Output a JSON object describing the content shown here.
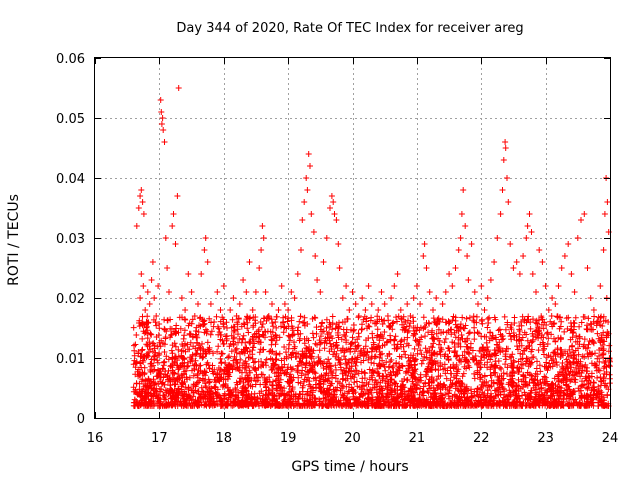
{
  "chart_data": {
    "type": "scatter",
    "title": "Day 344 of 2020, Rate Of TEC Index for receiver areg",
    "xlabel": "GPS time / hours",
    "ylabel": "ROTI / TECUs",
    "xlim": [
      16,
      24
    ],
    "ylim": [
      0,
      0.06
    ],
    "x_ticks": [
      16,
      17,
      18,
      19,
      20,
      21,
      22,
      23,
      24
    ],
    "y_ticks": [
      0,
      0.01,
      0.02,
      0.03,
      0.04,
      0.05,
      0.06
    ],
    "x_tick_labels": [
      "16",
      "17",
      "18",
      "19",
      "20",
      "21",
      "22",
      "23",
      "24"
    ],
    "y_tick_labels": [
      "0",
      "0.01",
      "0.02",
      "0.03",
      "0.04",
      "0.05",
      "0.06"
    ],
    "grid": true,
    "marker": "+",
    "color": "#ff0000",
    "series": [
      {
        "name": "ROTI",
        "points": [
          [
            16.65,
            0.032
          ],
          [
            16.68,
            0.035
          ],
          [
            16.7,
            0.037
          ],
          [
            16.72,
            0.038
          ],
          [
            16.74,
            0.036
          ],
          [
            16.76,
            0.034
          ],
          [
            16.7,
            0.02
          ],
          [
            16.72,
            0.024
          ],
          [
            16.75,
            0.022
          ],
          [
            16.78,
            0.018
          ],
          [
            16.8,
            0.016
          ],
          [
            16.82,
            0.021
          ],
          [
            16.85,
            0.019
          ],
          [
            16.88,
            0.023
          ],
          [
            16.9,
            0.026
          ],
          [
            16.92,
            0.02
          ],
          [
            16.95,
            0.017
          ],
          [
            16.98,
            0.022
          ],
          [
            17.02,
            0.053
          ],
          [
            17.03,
            0.051
          ],
          [
            17.04,
            0.049
          ],
          [
            17.05,
            0.05
          ],
          [
            17.06,
            0.048
          ],
          [
            17.08,
            0.046
          ],
          [
            17.1,
            0.03
          ],
          [
            17.12,
            0.025
          ],
          [
            17.15,
            0.021
          ],
          [
            17.2,
            0.032
          ],
          [
            17.22,
            0.034
          ],
          [
            17.25,
            0.029
          ],
          [
            17.28,
            0.037
          ],
          [
            17.3,
            0.055
          ],
          [
            17.35,
            0.02
          ],
          [
            17.4,
            0.018
          ],
          [
            17.45,
            0.024
          ],
          [
            17.5,
            0.021
          ],
          [
            17.55,
            0.017
          ],
          [
            17.6,
            0.019
          ],
          [
            17.65,
            0.024
          ],
          [
            17.7,
            0.028
          ],
          [
            17.72,
            0.03
          ],
          [
            17.75,
            0.026
          ],
          [
            17.8,
            0.019
          ],
          [
            17.85,
            0.016
          ],
          [
            17.9,
            0.021
          ],
          [
            17.95,
            0.018
          ],
          [
            18.0,
            0.022
          ],
          [
            18.05,
            0.015
          ],
          [
            18.1,
            0.018
          ],
          [
            18.15,
            0.02
          ],
          [
            18.2,
            0.017
          ],
          [
            18.25,
            0.019
          ],
          [
            18.3,
            0.023
          ],
          [
            18.35,
            0.021
          ],
          [
            18.4,
            0.026
          ],
          [
            18.45,
            0.018
          ],
          [
            18.5,
            0.021
          ],
          [
            18.55,
            0.025
          ],
          [
            18.58,
            0.028
          ],
          [
            18.6,
            0.032
          ],
          [
            18.62,
            0.03
          ],
          [
            18.65,
            0.021
          ],
          [
            18.7,
            0.017
          ],
          [
            18.75,
            0.019
          ],
          [
            18.8,
            0.016
          ],
          [
            18.85,
            0.018
          ],
          [
            18.9,
            0.022
          ],
          [
            18.95,
            0.019
          ],
          [
            19.0,
            0.018
          ],
          [
            19.05,
            0.021
          ],
          [
            19.1,
            0.02
          ],
          [
            19.15,
            0.024
          ],
          [
            19.2,
            0.028
          ],
          [
            19.22,
            0.033
          ],
          [
            19.25,
            0.036
          ],
          [
            19.28,
            0.04
          ],
          [
            19.3,
            0.038
          ],
          [
            19.32,
            0.044
          ],
          [
            19.34,
            0.042
          ],
          [
            19.36,
            0.034
          ],
          [
            19.4,
            0.031
          ],
          [
            19.42,
            0.027
          ],
          [
            19.45,
            0.023
          ],
          [
            19.5,
            0.021
          ],
          [
            19.55,
            0.026
          ],
          [
            19.6,
            0.03
          ],
          [
            19.65,
            0.035
          ],
          [
            19.68,
            0.037
          ],
          [
            19.7,
            0.036
          ],
          [
            19.72,
            0.034
          ],
          [
            19.75,
            0.033
          ],
          [
            19.78,
            0.029
          ],
          [
            19.8,
            0.025
          ],
          [
            19.85,
            0.02
          ],
          [
            19.9,
            0.022
          ],
          [
            19.95,
            0.018
          ],
          [
            20.0,
            0.021
          ],
          [
            20.05,
            0.019
          ],
          [
            20.1,
            0.017
          ],
          [
            20.15,
            0.02
          ],
          [
            20.2,
            0.018
          ],
          [
            20.25,
            0.022
          ],
          [
            20.3,
            0.019
          ],
          [
            20.35,
            0.016
          ],
          [
            20.4,
            0.018
          ],
          [
            20.45,
            0.021
          ],
          [
            20.5,
            0.019
          ],
          [
            20.55,
            0.017
          ],
          [
            20.6,
            0.02
          ],
          [
            20.65,
            0.022
          ],
          [
            20.7,
            0.024
          ],
          [
            20.75,
            0.018
          ],
          [
            20.8,
            0.016
          ],
          [
            20.85,
            0.019
          ],
          [
            20.9,
            0.017
          ],
          [
            20.95,
            0.02
          ],
          [
            21.0,
            0.022
          ],
          [
            21.05,
            0.019
          ],
          [
            21.1,
            0.027
          ],
          [
            21.12,
            0.029
          ],
          [
            21.15,
            0.025
          ],
          [
            21.2,
            0.021
          ],
          [
            21.25,
            0.018
          ],
          [
            21.3,
            0.02
          ],
          [
            21.35,
            0.016
          ],
          [
            21.4,
            0.019
          ],
          [
            21.45,
            0.021
          ],
          [
            21.5,
            0.024
          ],
          [
            21.55,
            0.022
          ],
          [
            21.6,
            0.025
          ],
          [
            21.65,
            0.028
          ],
          [
            21.68,
            0.03
          ],
          [
            21.7,
            0.034
          ],
          [
            21.72,
            0.038
          ],
          [
            21.75,
            0.032
          ],
          [
            21.78,
            0.027
          ],
          [
            21.8,
            0.023
          ],
          [
            21.85,
            0.029
          ],
          [
            21.9,
            0.021
          ],
          [
            21.95,
            0.019
          ],
          [
            22.0,
            0.022
          ],
          [
            22.05,
            0.018
          ],
          [
            22.1,
            0.02
          ],
          [
            22.15,
            0.023
          ],
          [
            22.2,
            0.026
          ],
          [
            22.25,
            0.03
          ],
          [
            22.3,
            0.034
          ],
          [
            22.33,
            0.038
          ],
          [
            22.35,
            0.043
          ],
          [
            22.37,
            0.046
          ],
          [
            22.38,
            0.045
          ],
          [
            22.4,
            0.04
          ],
          [
            22.42,
            0.036
          ],
          [
            22.45,
            0.029
          ],
          [
            22.5,
            0.025
          ],
          [
            22.55,
            0.026
          ],
          [
            22.6,
            0.024
          ],
          [
            22.65,
            0.027
          ],
          [
            22.7,
            0.03
          ],
          [
            22.72,
            0.032
          ],
          [
            22.75,
            0.034
          ],
          [
            22.78,
            0.031
          ],
          [
            22.8,
            0.024
          ],
          [
            22.85,
            0.021
          ],
          [
            22.9,
            0.028
          ],
          [
            22.95,
            0.026
          ],
          [
            23.0,
            0.022
          ],
          [
            23.05,
            0.018
          ],
          [
            23.1,
            0.02
          ],
          [
            23.15,
            0.019
          ],
          [
            23.2,
            0.022
          ],
          [
            23.25,
            0.025
          ],
          [
            23.3,
            0.027
          ],
          [
            23.35,
            0.029
          ],
          [
            23.4,
            0.024
          ],
          [
            23.45,
            0.021
          ],
          [
            23.5,
            0.03
          ],
          [
            23.55,
            0.033
          ],
          [
            23.6,
            0.034
          ],
          [
            23.65,
            0.025
          ],
          [
            23.7,
            0.02
          ],
          [
            23.75,
            0.018
          ],
          [
            23.8,
            0.016
          ],
          [
            23.85,
            0.022
          ],
          [
            23.9,
            0.028
          ],
          [
            23.92,
            0.034
          ],
          [
            23.94,
            0.04
          ],
          [
            23.96,
            0.036
          ],
          [
            23.98,
            0.031
          ],
          [
            23.95,
            0.02
          ],
          [
            23.97,
            0.016
          ],
          [
            23.99,
            0.01
          ]
        ],
        "dense_band": {
          "x_start": 16.6,
          "x_end": 24.0,
          "y_floor": 0.002,
          "y_typical_max": 0.017,
          "count": 4200
        }
      }
    ]
  }
}
